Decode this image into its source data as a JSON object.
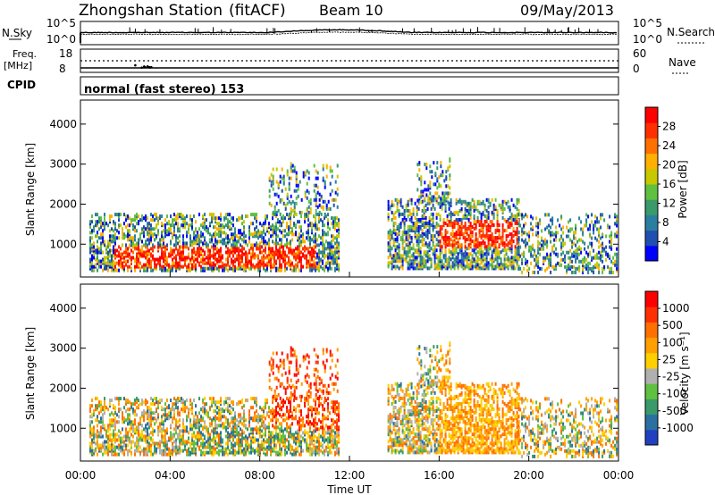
{
  "header": {
    "station": "Zhongshan Station",
    "mode": "(fitACF)",
    "beam": "Beam 10",
    "date": "09/May/2013"
  },
  "strip_labels": {
    "nsky": "N.Sky",
    "nsky_ticks": [
      "10^5",
      "10^0"
    ],
    "nsearch": "N.Search",
    "nsearch_ticks": [
      "10^5",
      "10^0"
    ],
    "freq": "Freq.",
    "freq_unit": "[MHz]",
    "freq_ticks": [
      "18",
      "8"
    ],
    "nave": "Nave",
    "nave_ticks": [
      "60",
      "0"
    ],
    "cpid": "CPID",
    "cpid_text": "normal (fast stereo) 153"
  },
  "chart_data": [
    {
      "type": "heatmap",
      "name": "power",
      "ylabel": "Slant Range [km]",
      "yticks": [
        1000,
        2000,
        3000,
        4000
      ],
      "ylim": [
        180,
        4600
      ],
      "xlim": [
        0,
        24
      ],
      "colorbar": {
        "label": "Power [dB]",
        "ticks": [
          "4",
          "8",
          "12",
          "16",
          "20",
          "24",
          "28"
        ],
        "colors": [
          "#0000ff",
          "#1f4fb0",
          "#2a7fa0",
          "#3a9a6a",
          "#60c040",
          "#c8c800",
          "#ffb000",
          "#ff7000",
          "#ff3000",
          "#ff0000"
        ]
      }
    },
    {
      "type": "heatmap",
      "name": "velocity",
      "ylabel": "Slant Range [km]",
      "yticks": [
        1000,
        2000,
        3000,
        4000
      ],
      "ylim": [
        180,
        4600
      ],
      "xlim": [
        0,
        24
      ],
      "colorbar": {
        "label": "Velocity [m s⁻¹]",
        "ticks": [
          "1000",
          "500",
          "100",
          "25",
          "-25",
          "-100",
          "-500",
          "-1000"
        ],
        "colors": [
          "#2040c0",
          "#2a70a0",
          "#3a9a6a",
          "#60c040",
          "#b0b0b0",
          "#ffd000",
          "#ffa000",
          "#ff7000",
          "#ff3000",
          "#ff0000"
        ]
      }
    }
  ],
  "xaxis": {
    "label": "Time UT",
    "ticks": [
      "00:00",
      "04:00",
      "08:00",
      "12:00",
      "16:00",
      "20:00",
      "00:00"
    ]
  }
}
